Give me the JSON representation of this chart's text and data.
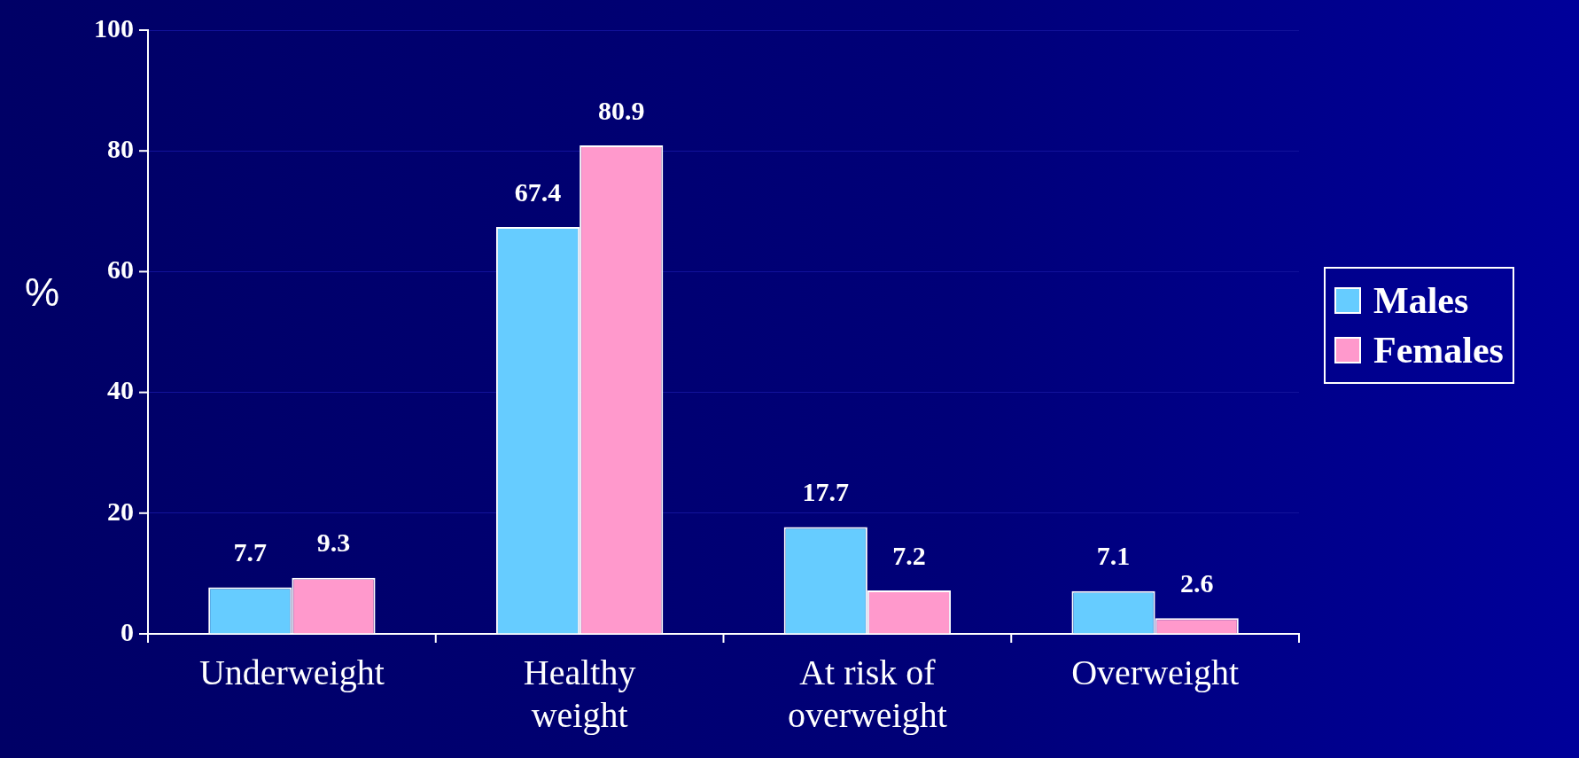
{
  "chart_data": {
    "type": "bar",
    "ylabel": "%",
    "categories": [
      "Underweight",
      "Healthy weight",
      "At risk of overweight",
      "Overweight"
    ],
    "series": [
      {
        "name": "Males",
        "color": "#66ccff",
        "values": [
          7.7,
          67.4,
          17.7,
          7.1
        ]
      },
      {
        "name": "Females",
        "color": "#ff99cc",
        "values": [
          9.3,
          80.9,
          7.2,
          2.6
        ]
      }
    ],
    "ylim": [
      0,
      100
    ],
    "yticks": [
      0,
      20,
      40,
      60,
      80,
      100
    ],
    "grid": "y",
    "legend": "right",
    "data_labels": true
  }
}
